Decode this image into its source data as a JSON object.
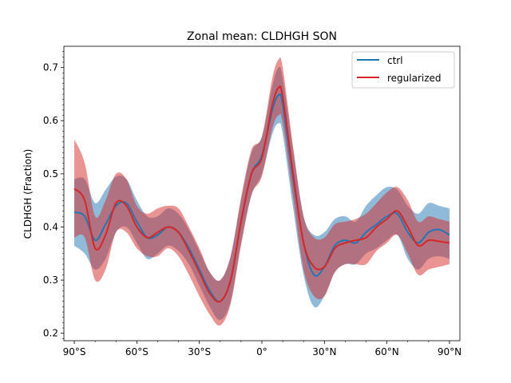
{
  "chart_data": {
    "type": "line",
    "title": "Zonal mean: CLDHGH SON",
    "xlabel": "",
    "ylabel": "CLDHGH (Fraction)",
    "xlim": [
      -95,
      95
    ],
    "ylim": [
      0.186,
      0.74
    ],
    "xticks": [
      {
        "value": -90,
        "label": "90°S"
      },
      {
        "value": -60,
        "label": "60°S"
      },
      {
        "value": -30,
        "label": "30°S"
      },
      {
        "value": 0,
        "label": "0°"
      },
      {
        "value": 30,
        "label": "30°N"
      },
      {
        "value": 60,
        "label": "60°N"
      },
      {
        "value": 90,
        "label": "90°N"
      }
    ],
    "yticks": [
      {
        "value": 0.2,
        "label": "0.2"
      },
      {
        "value": 0.3,
        "label": "0.3"
      },
      {
        "value": 0.4,
        "label": "0.4"
      },
      {
        "value": 0.5,
        "label": "0.5"
      },
      {
        "value": 0.6,
        "label": "0.6"
      },
      {
        "value": 0.7,
        "label": "0.7"
      }
    ],
    "legend": {
      "position": "top-right",
      "entries": [
        "ctrl",
        "regularized"
      ]
    },
    "series": [
      {
        "name": "ctrl",
        "color": "#1f77b4",
        "band_color": "#1f77b4",
        "band_opacity": 0.5,
        "x": [
          -90,
          -85,
          -80,
          -75,
          -70,
          -65,
          -60,
          -55,
          -50,
          -45,
          -40,
          -35,
          -30,
          -25,
          -20,
          -15,
          -10,
          -5,
          0,
          5,
          8,
          10,
          15,
          20,
          25,
          30,
          35,
          40,
          45,
          50,
          55,
          60,
          65,
          70,
          75,
          80,
          85,
          90
        ],
        "mean": [
          0.428,
          0.42,
          0.375,
          0.405,
          0.44,
          0.445,
          0.41,
          0.38,
          0.385,
          0.4,
          0.39,
          0.36,
          0.32,
          0.28,
          0.26,
          0.3,
          0.41,
          0.5,
          0.535,
          0.62,
          0.648,
          0.63,
          0.49,
          0.37,
          0.31,
          0.325,
          0.365,
          0.375,
          0.37,
          0.39,
          0.405,
          0.42,
          0.425,
          0.39,
          0.37,
          0.39,
          0.395,
          0.385
        ],
        "lower": [
          0.365,
          0.35,
          0.32,
          0.34,
          0.39,
          0.4,
          0.37,
          0.34,
          0.35,
          0.365,
          0.355,
          0.33,
          0.29,
          0.25,
          0.225,
          0.26,
          0.37,
          0.46,
          0.5,
          0.575,
          0.595,
          0.575,
          0.435,
          0.31,
          0.25,
          0.27,
          0.315,
          0.33,
          0.33,
          0.35,
          0.36,
          0.375,
          0.385,
          0.34,
          0.32,
          0.34,
          0.345,
          0.34
        ],
        "upper": [
          0.49,
          0.49,
          0.445,
          0.47,
          0.495,
          0.49,
          0.45,
          0.42,
          0.42,
          0.435,
          0.425,
          0.395,
          0.355,
          0.315,
          0.3,
          0.345,
          0.45,
          0.54,
          0.57,
          0.665,
          0.7,
          0.68,
          0.545,
          0.42,
          0.385,
          0.39,
          0.415,
          0.42,
          0.41,
          0.44,
          0.46,
          0.475,
          0.47,
          0.44,
          0.425,
          0.445,
          0.44,
          0.435
        ]
      },
      {
        "name": "regularized",
        "color": "#d62728",
        "band_color": "#d62728",
        "band_opacity": 0.5,
        "x": [
          -90,
          -85,
          -80,
          -75,
          -70,
          -65,
          -60,
          -55,
          -50,
          -45,
          -40,
          -35,
          -30,
          -25,
          -20,
          -15,
          -10,
          -5,
          0,
          5,
          8,
          10,
          15,
          20,
          25,
          30,
          35,
          40,
          45,
          50,
          55,
          60,
          65,
          70,
          75,
          80,
          85,
          90
        ],
        "mean": [
          0.472,
          0.45,
          0.36,
          0.385,
          0.445,
          0.44,
          0.4,
          0.38,
          0.39,
          0.4,
          0.39,
          0.355,
          0.315,
          0.275,
          0.26,
          0.3,
          0.41,
          0.5,
          0.53,
          0.63,
          0.662,
          0.645,
          0.5,
          0.37,
          0.325,
          0.325,
          0.36,
          0.37,
          0.375,
          0.38,
          0.4,
          0.415,
          0.43,
          0.4,
          0.365,
          0.375,
          0.373,
          0.37
        ],
        "lower": [
          0.38,
          0.38,
          0.3,
          0.32,
          0.39,
          0.39,
          0.36,
          0.345,
          0.345,
          0.36,
          0.345,
          0.31,
          0.27,
          0.235,
          0.215,
          0.255,
          0.365,
          0.46,
          0.495,
          0.585,
          0.61,
          0.595,
          0.455,
          0.32,
          0.27,
          0.27,
          0.315,
          0.33,
          0.33,
          0.33,
          0.355,
          0.37,
          0.385,
          0.35,
          0.31,
          0.32,
          0.325,
          0.33
        ],
        "upper": [
          0.565,
          0.52,
          0.42,
          0.45,
          0.5,
          0.49,
          0.44,
          0.425,
          0.435,
          0.44,
          0.435,
          0.4,
          0.36,
          0.315,
          0.3,
          0.345,
          0.455,
          0.545,
          0.57,
          0.68,
          0.715,
          0.7,
          0.55,
          0.42,
          0.38,
          0.38,
          0.405,
          0.41,
          0.415,
          0.425,
          0.445,
          0.465,
          0.475,
          0.45,
          0.41,
          0.42,
          0.415,
          0.41
        ]
      }
    ]
  }
}
